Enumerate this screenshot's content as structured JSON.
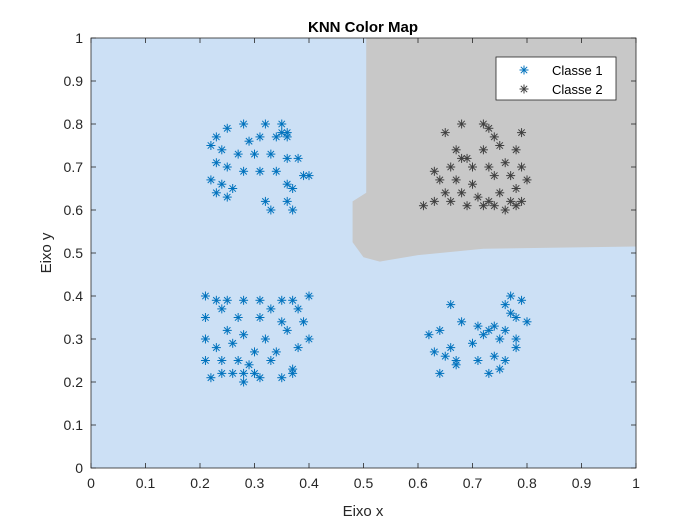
{
  "chart_data": {
    "type": "scatter",
    "title": "KNN Color Map",
    "xlabel": "Eixo x",
    "ylabel": "Eixo y",
    "xlim": [
      0,
      1
    ],
    "ylim": [
      0,
      1
    ],
    "xticks": [
      0,
      0.1,
      0.2,
      0.3,
      0.4,
      0.5,
      0.6,
      0.7,
      0.8,
      0.9,
      1
    ],
    "yticks": [
      0,
      0.1,
      0.2,
      0.3,
      0.4,
      0.5,
      0.6,
      0.7,
      0.8,
      0.9,
      1
    ],
    "xtick_labels": [
      "0",
      "0.1",
      "0.2",
      "0.3",
      "0.4",
      "0.5",
      "0.6",
      "0.7",
      "0.8",
      "0.9",
      "1"
    ],
    "ytick_labels": [
      "0",
      "0.1",
      "0.2",
      "0.3",
      "0.4",
      "0.5",
      "0.6",
      "0.7",
      "0.8",
      "0.9",
      "1"
    ],
    "grid": false,
    "legend_position": "top-right",
    "marker": "asterisk",
    "background_region": {
      "class": "Classe 1",
      "color": "#cce0f5"
    },
    "decision_region": {
      "class": "Classe 2",
      "color": "#c8c8c8",
      "boundary": [
        [
          0.505,
          1.0
        ],
        [
          1.0,
          1.0
        ],
        [
          1.0,
          0.515
        ],
        [
          0.72,
          0.51
        ],
        [
          0.6,
          0.495
        ],
        [
          0.53,
          0.48
        ],
        [
          0.5,
          0.49
        ],
        [
          0.48,
          0.525
        ],
        [
          0.48,
          0.62
        ],
        [
          0.505,
          0.64
        ]
      ]
    },
    "series": [
      {
        "name": "Classe 1",
        "color": "#0072bd",
        "points": [
          [
            0.22,
            0.75
          ],
          [
            0.23,
            0.77
          ],
          [
            0.25,
            0.79
          ],
          [
            0.28,
            0.8
          ],
          [
            0.32,
            0.8
          ],
          [
            0.35,
            0.8
          ],
          [
            0.36,
            0.78
          ],
          [
            0.34,
            0.77
          ],
          [
            0.31,
            0.77
          ],
          [
            0.29,
            0.76
          ],
          [
            0.24,
            0.74
          ],
          [
            0.27,
            0.73
          ],
          [
            0.3,
            0.73
          ],
          [
            0.33,
            0.73
          ],
          [
            0.36,
            0.72
          ],
          [
            0.38,
            0.72
          ],
          [
            0.23,
            0.71
          ],
          [
            0.25,
            0.7
          ],
          [
            0.28,
            0.69
          ],
          [
            0.31,
            0.69
          ],
          [
            0.34,
            0.69
          ],
          [
            0.39,
            0.68
          ],
          [
            0.4,
            0.68
          ],
          [
            0.22,
            0.67
          ],
          [
            0.24,
            0.66
          ],
          [
            0.26,
            0.65
          ],
          [
            0.36,
            0.66
          ],
          [
            0.37,
            0.65
          ],
          [
            0.23,
            0.64
          ],
          [
            0.25,
            0.63
          ],
          [
            0.32,
            0.62
          ],
          [
            0.36,
            0.62
          ],
          [
            0.33,
            0.6
          ],
          [
            0.37,
            0.6
          ],
          [
            0.35,
            0.78
          ],
          [
            0.36,
            0.77
          ],
          [
            0.21,
            0.4
          ],
          [
            0.23,
            0.39
          ],
          [
            0.25,
            0.39
          ],
          [
            0.28,
            0.39
          ],
          [
            0.31,
            0.39
          ],
          [
            0.35,
            0.39
          ],
          [
            0.37,
            0.39
          ],
          [
            0.4,
            0.4
          ],
          [
            0.24,
            0.37
          ],
          [
            0.33,
            0.37
          ],
          [
            0.38,
            0.37
          ],
          [
            0.21,
            0.35
          ],
          [
            0.27,
            0.35
          ],
          [
            0.31,
            0.35
          ],
          [
            0.35,
            0.34
          ],
          [
            0.39,
            0.34
          ],
          [
            0.25,
            0.32
          ],
          [
            0.28,
            0.31
          ],
          [
            0.32,
            0.3
          ],
          [
            0.36,
            0.32
          ],
          [
            0.4,
            0.3
          ],
          [
            0.21,
            0.3
          ],
          [
            0.23,
            0.28
          ],
          [
            0.26,
            0.29
          ],
          [
            0.3,
            0.27
          ],
          [
            0.34,
            0.27
          ],
          [
            0.38,
            0.28
          ],
          [
            0.24,
            0.25
          ],
          [
            0.21,
            0.25
          ],
          [
            0.27,
            0.25
          ],
          [
            0.29,
            0.24
          ],
          [
            0.33,
            0.25
          ],
          [
            0.37,
            0.23
          ],
          [
            0.22,
            0.21
          ],
          [
            0.24,
            0.22
          ],
          [
            0.28,
            0.22
          ],
          [
            0.31,
            0.21
          ],
          [
            0.35,
            0.21
          ],
          [
            0.37,
            0.22
          ],
          [
            0.28,
            0.2
          ],
          [
            0.26,
            0.22
          ],
          [
            0.3,
            0.22
          ],
          [
            0.66,
            0.38
          ],
          [
            0.62,
            0.31
          ],
          [
            0.64,
            0.32
          ],
          [
            0.68,
            0.34
          ],
          [
            0.71,
            0.33
          ],
          [
            0.73,
            0.32
          ],
          [
            0.75,
            0.3
          ],
          [
            0.77,
            0.4
          ],
          [
            0.76,
            0.38
          ],
          [
            0.79,
            0.39
          ],
          [
            0.77,
            0.36
          ],
          [
            0.78,
            0.35
          ],
          [
            0.8,
            0.34
          ],
          [
            0.74,
            0.33
          ],
          [
            0.76,
            0.32
          ],
          [
            0.7,
            0.29
          ],
          [
            0.72,
            0.31
          ],
          [
            0.78,
            0.3
          ],
          [
            0.66,
            0.28
          ],
          [
            0.63,
            0.27
          ],
          [
            0.65,
            0.26
          ],
          [
            0.67,
            0.25
          ],
          [
            0.71,
            0.25
          ],
          [
            0.74,
            0.26
          ],
          [
            0.76,
            0.25
          ],
          [
            0.78,
            0.28
          ],
          [
            0.64,
            0.22
          ],
          [
            0.73,
            0.22
          ],
          [
            0.75,
            0.23
          ],
          [
            0.67,
            0.24
          ]
        ]
      },
      {
        "name": "Classe 2",
        "color": "#404040",
        "points": [
          [
            0.65,
            0.78
          ],
          [
            0.68,
            0.8
          ],
          [
            0.72,
            0.8
          ],
          [
            0.73,
            0.79
          ],
          [
            0.74,
            0.77
          ],
          [
            0.79,
            0.78
          ],
          [
            0.67,
            0.74
          ],
          [
            0.69,
            0.72
          ],
          [
            0.72,
            0.74
          ],
          [
            0.75,
            0.75
          ],
          [
            0.78,
            0.74
          ],
          [
            0.63,
            0.69
          ],
          [
            0.66,
            0.7
          ],
          [
            0.68,
            0.72
          ],
          [
            0.7,
            0.7
          ],
          [
            0.73,
            0.7
          ],
          [
            0.76,
            0.71
          ],
          [
            0.79,
            0.7
          ],
          [
            0.64,
            0.67
          ],
          [
            0.67,
            0.67
          ],
          [
            0.7,
            0.66
          ],
          [
            0.74,
            0.68
          ],
          [
            0.77,
            0.68
          ],
          [
            0.8,
            0.67
          ],
          [
            0.65,
            0.64
          ],
          [
            0.68,
            0.64
          ],
          [
            0.71,
            0.63
          ],
          [
            0.75,
            0.64
          ],
          [
            0.78,
            0.65
          ],
          [
            0.61,
            0.61
          ],
          [
            0.63,
            0.62
          ],
          [
            0.66,
            0.62
          ],
          [
            0.69,
            0.61
          ],
          [
            0.72,
            0.61
          ],
          [
            0.74,
            0.61
          ],
          [
            0.76,
            0.6
          ],
          [
            0.78,
            0.61
          ],
          [
            0.79,
            0.62
          ],
          [
            0.73,
            0.62
          ],
          [
            0.77,
            0.62
          ]
        ]
      }
    ]
  }
}
